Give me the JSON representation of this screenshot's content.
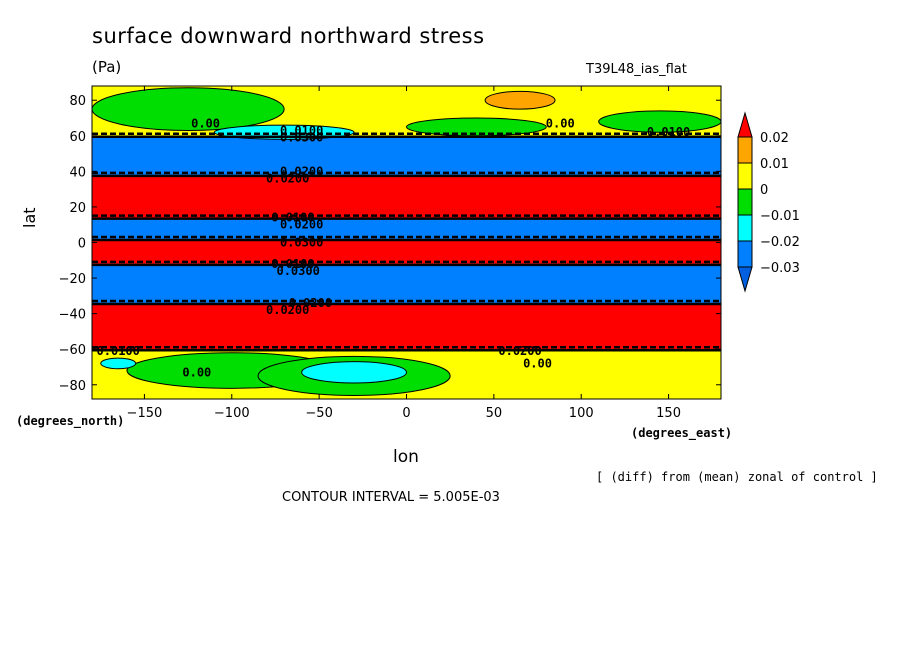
{
  "chart_data": {
    "type": "filled-contour",
    "title": "surface downward northward stress",
    "units": "(Pa)",
    "run_name": "T39L48_ias_flat",
    "xlabel": "lon",
    "xlabel_note": "(degrees_east)",
    "ylabel": "lat",
    "ylabel_note": "(degrees_north)",
    "xlim": [
      -180,
      180
    ],
    "ylim": [
      -88,
      88
    ],
    "x_ticks": [
      -150,
      -100,
      -50,
      0,
      50,
      100,
      150
    ],
    "y_ticks": [
      -80,
      -60,
      -40,
      -20,
      0,
      20,
      40,
      60,
      80
    ],
    "diff_note": "[ (diff) from (mean) zonal of control ]",
    "contour_interval_text": "CONTOUR INTERVAL = 5.005E-03",
    "colorbar": {
      "labels": [
        "0.02",
        "0.01",
        "0",
        "−0.01",
        "−0.02",
        "−0.03"
      ],
      "colors": [
        "#ff0000",
        "#ffa500",
        "#ffff00",
        "#00dd00",
        "#00ffff",
        "#0080ff",
        "#0060e0"
      ]
    },
    "bands": [
      {
        "lat_from": 88,
        "lat_to": 60,
        "level": "0",
        "color": "#ffff00"
      },
      {
        "lat_from": 60,
        "lat_to": 38,
        "level": "-0.03",
        "color": "#0080ff"
      },
      {
        "lat_from": 38,
        "lat_to": 14,
        "level": "0.02",
        "color": "#ff0000"
      },
      {
        "lat_from": 14,
        "lat_to": 2,
        "level": "-0.03",
        "color": "#0080ff"
      },
      {
        "lat_from": 2,
        "lat_to": -12,
        "level": "0.02",
        "color": "#ff0000"
      },
      {
        "lat_from": -12,
        "lat_to": -34,
        "level": "-0.03",
        "color": "#0080ff"
      },
      {
        "lat_from": -34,
        "lat_to": -60,
        "level": "0.02",
        "color": "#ff0000"
      },
      {
        "lat_from": -60,
        "lat_to": -88,
        "level": "0",
        "color": "#ffff00"
      }
    ],
    "regions": [
      {
        "lon": -125,
        "lat": 75,
        "rx": 55,
        "ry": 12,
        "color": "#00dd00"
      },
      {
        "lon": 65,
        "lat": 80,
        "rx": 20,
        "ry": 5,
        "color": "#ffa500"
      },
      {
        "lon": -70,
        "lat": 62,
        "rx": 40,
        "ry": 4,
        "color": "#00ffff"
      },
      {
        "lon": -100,
        "lat": -72,
        "rx": 60,
        "ry": 10,
        "color": "#00dd00"
      },
      {
        "lon": -30,
        "lat": -75,
        "rx": 55,
        "ry": 11,
        "color": "#00dd00"
      },
      {
        "lon": -30,
        "lat": -73,
        "rx": 30,
        "ry": 6,
        "color": "#00ffff"
      },
      {
        "lon": -165,
        "lat": -68,
        "rx": 10,
        "ry": 3,
        "color": "#00ffff"
      },
      {
        "lon": 145,
        "lat": 68,
        "rx": 35,
        "ry": 6,
        "color": "#00dd00"
      },
      {
        "lon": 40,
        "lat": 65,
        "rx": 40,
        "ry": 5,
        "color": "#00dd00"
      }
    ],
    "contour_labels": [
      {
        "text": "0.00",
        "lon": -115,
        "lat": 67
      },
      {
        "text": "0.0100",
        "lon": -60,
        "lat": 63
      },
      {
        "text": "0.0300",
        "lon": -60,
        "lat": 59
      },
      {
        "text": "0.00",
        "lon": 88,
        "lat": 67
      },
      {
        "text": "0.0100",
        "lon": 150,
        "lat": 62
      },
      {
        "text": "0.0200",
        "lon": -60,
        "lat": 40
      },
      {
        "text": "0.0200",
        "lon": -68,
        "lat": 36
      },
      {
        "text": "0.0100",
        "lon": -65,
        "lat": 14
      },
      {
        "text": "0.0200",
        "lon": -60,
        "lat": 10
      },
      {
        "text": "0.0300",
        "lon": -60,
        "lat": 0
      },
      {
        "text": "0.0100",
        "lon": -65,
        "lat": -12
      },
      {
        "text": "0.0300",
        "lon": -62,
        "lat": -16
      },
      {
        "text": "0.0200",
        "lon": -55,
        "lat": -34
      },
      {
        "text": "0.0200",
        "lon": -68,
        "lat": -38
      },
      {
        "text": "0.0100",
        "lon": -165,
        "lat": -61
      },
      {
        "text": "0.00",
        "lon": -120,
        "lat": -73
      },
      {
        "text": "0.0200",
        "lon": 65,
        "lat": -61
      },
      {
        "text": "0.00",
        "lon": 75,
        "lat": -68
      }
    ]
  }
}
